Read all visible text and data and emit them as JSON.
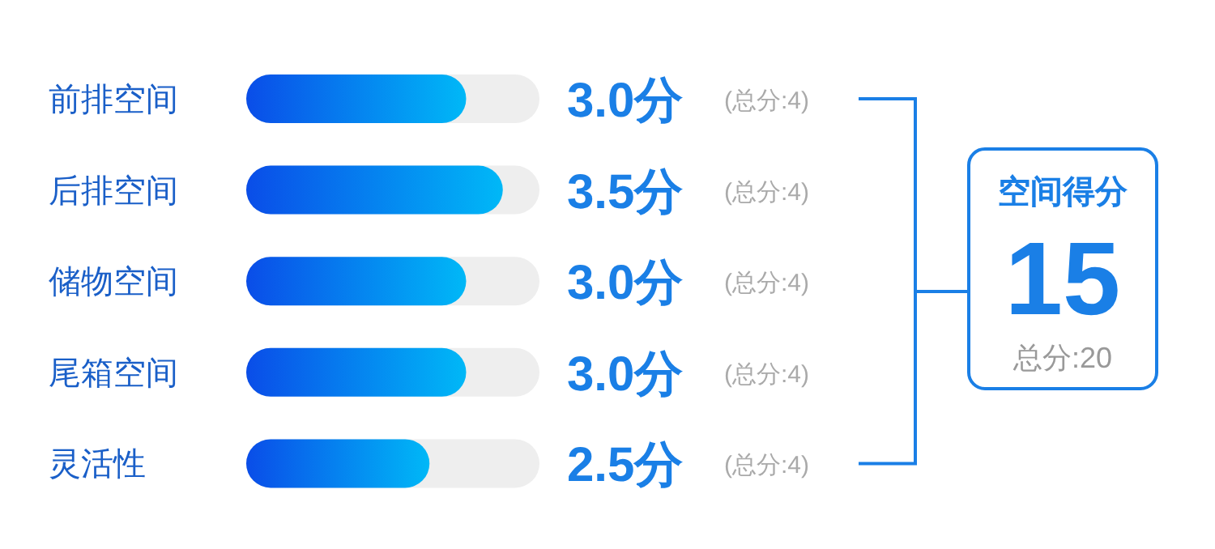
{
  "chart_data": [
    {
      "type": "bar",
      "orientation": "horizontal",
      "categories": [
        "前排空间",
        "后排空间",
        "储物空间",
        "尾箱空间",
        "灵活性"
      ],
      "values": [
        3.0,
        3.5,
        3.0,
        3.0,
        2.5
      ],
      "color": "#0a4de8",
      "xlim": [
        0,
        4
      ],
      "value_labels": [
        "3.0分",
        "3.5分",
        "3.0分",
        "3.0分",
        "2.5分"
      ],
      "annotations": [
        "(总分:4)",
        "(总分:4)",
        "(总分:4)",
        "(总分:4)",
        "(总分:4)"
      ]
    },
    {
      "type": "other",
      "title": "空间得分",
      "annotations": [
        "15",
        "总分:20"
      ]
    }
  ]
}
